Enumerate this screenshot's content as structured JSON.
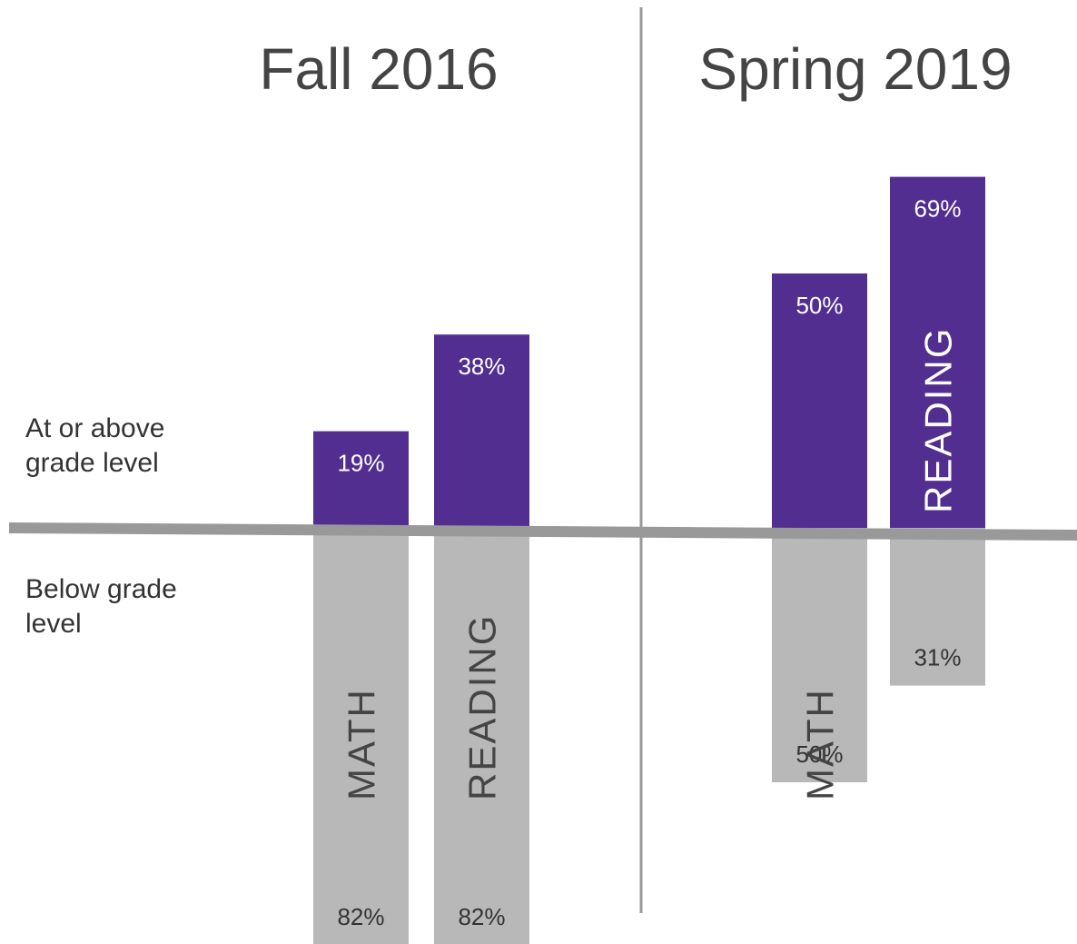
{
  "chart_data": {
    "type": "diverging_bar",
    "series": [
      {
        "name": "At or above grade level",
        "color": "#522e91"
      },
      {
        "name": "Below grade level",
        "color": "#b8b8b8"
      }
    ],
    "panels": [
      {
        "title": "Fall 2016",
        "categories": [
          "MATH",
          "READING"
        ],
        "values": [
          [
            19,
            38
          ],
          [
            82,
            82
          ]
        ],
        "value_labels": [
          [
            "19%",
            "38%"
          ],
          [
            "82%",
            "82%"
          ]
        ]
      },
      {
        "title": "Spring 2019",
        "categories": [
          "MATH",
          "READING"
        ],
        "values": [
          [
            50,
            69
          ],
          [
            50,
            31
          ]
        ],
        "value_labels": [
          [
            "50%",
            "69%"
          ],
          [
            "50%",
            "31%"
          ]
        ]
      }
    ]
  }
}
